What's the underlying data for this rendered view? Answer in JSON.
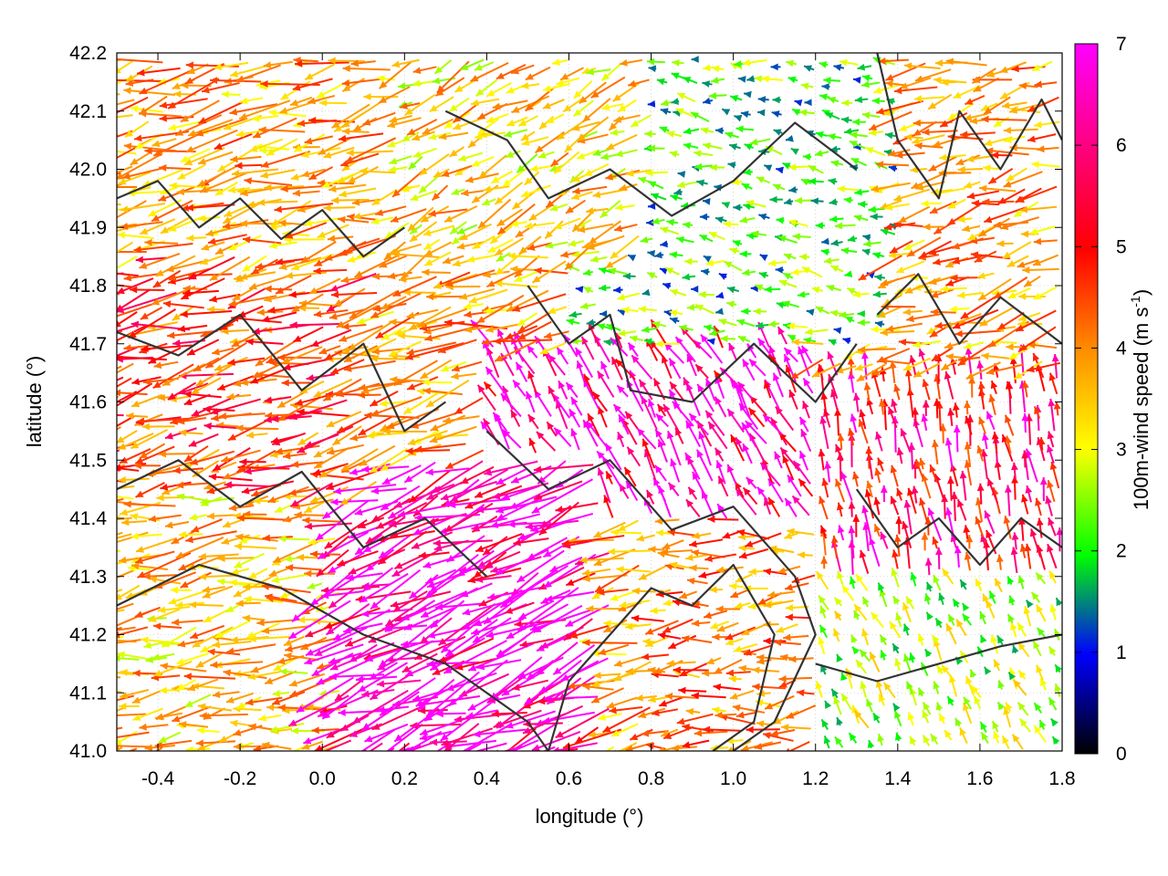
{
  "chart_data": {
    "type": "vector-field",
    "xlabel": "longitude (°)",
    "ylabel": "latitude (°)",
    "xlim": [
      -0.5,
      1.8
    ],
    "ylim": [
      41.0,
      42.2
    ],
    "xticks": [
      -0.4,
      -0.2,
      0.0,
      0.2,
      0.4,
      0.6,
      0.8,
      1.0,
      1.2,
      1.4,
      1.6,
      1.8
    ],
    "xtick_labels": [
      "-0.4",
      "-0.2",
      "0.0",
      "0.2",
      "0.4",
      "0.6",
      "0.8",
      "1.0",
      "1.2",
      "1.4",
      "1.6",
      "1.8"
    ],
    "yticks": [
      41.0,
      41.1,
      41.2,
      41.3,
      41.4,
      41.5,
      41.6,
      41.7,
      41.8,
      41.9,
      42.0,
      42.1,
      42.2
    ],
    "ytick_labels": [
      "41.0",
      "41.1",
      "41.2",
      "41.3",
      "41.4",
      "41.5",
      "41.6",
      "41.7",
      "41.8",
      "41.9",
      "42.0",
      "42.1",
      "42.2"
    ],
    "grid": true,
    "colorbar": {
      "label": "100m-wind speed (m s",
      "label_sup": "-1",
      "label_end": ")",
      "range": [
        0,
        7
      ],
      "ticks": [
        "0",
        "1",
        "2",
        "3",
        "4",
        "5",
        "6",
        "7"
      ],
      "colors": [
        "#000000",
        "#0000ff",
        "#00ff00",
        "#ffff00",
        "#ff8c00",
        "#ff0000",
        "#ff00ff"
      ]
    },
    "series": [
      {
        "kind": "wind-vectors",
        "regions": [
          {
            "x": [
              -0.5,
              0.2
            ],
            "y": [
              41.85,
              42.2
            ],
            "speed": 4.5,
            "dir_deg": 190,
            "len": 0.09
          },
          {
            "x": [
              -0.5,
              0.15
            ],
            "y": [
              41.45,
              41.85
            ],
            "speed": 5.2,
            "dir_deg": 190,
            "len": 0.09
          },
          {
            "x": [
              -0.5,
              0.05
            ],
            "y": [
              41.0,
              41.45
            ],
            "speed": 4.2,
            "dir_deg": 188,
            "len": 0.08
          },
          {
            "x": [
              0.05,
              0.7
            ],
            "y": [
              41.0,
              41.5
            ],
            "speed": 7.0,
            "dir_deg": 196,
            "len": 0.12
          },
          {
            "x": [
              0.4,
              1.2
            ],
            "y": [
              41.4,
              41.7
            ],
            "speed": 6.8,
            "dir_deg": 130,
            "len": 0.05
          },
          {
            "x": [
              0.2,
              0.8
            ],
            "y": [
              41.85,
              42.2
            ],
            "speed": 4.0,
            "dir_deg": 200,
            "len": 0.06
          },
          {
            "x": [
              0.6,
              1.4
            ],
            "y": [
              41.7,
              42.2
            ],
            "speed": 2.4,
            "dir_deg": 175,
            "len": 0.03
          },
          {
            "x": [
              1.2,
              1.8
            ],
            "y": [
              41.65,
              42.2
            ],
            "speed": 4.5,
            "dir_deg": 190,
            "len": 0.07
          },
          {
            "x": [
              1.2,
              1.8
            ],
            "y": [
              41.3,
              41.65
            ],
            "speed": 6.0,
            "dir_deg": 105,
            "len": 0.04
          },
          {
            "x": [
              0.8,
              1.2
            ],
            "y": [
              41.0,
              41.4
            ],
            "speed": 4.8,
            "dir_deg": 185,
            "len": 0.06
          },
          {
            "x": [
              1.2,
              1.8
            ],
            "y": [
              41.0,
              41.3
            ],
            "speed": 3.0,
            "dir_deg": 125,
            "len": 0.025
          }
        ]
      },
      {
        "kind": "terrain-contours",
        "contours": [
          [
            [
              -0.5,
              41.95
            ],
            [
              -0.4,
              41.98
            ],
            [
              -0.3,
              41.9
            ],
            [
              -0.2,
              41.95
            ],
            [
              -0.1,
              41.88
            ],
            [
              0.0,
              41.93
            ],
            [
              0.1,
              41.85
            ],
            [
              0.2,
              41.9
            ]
          ],
          [
            [
              -0.5,
              41.72
            ],
            [
              -0.35,
              41.68
            ],
            [
              -0.2,
              41.75
            ],
            [
              -0.05,
              41.62
            ],
            [
              0.1,
              41.7
            ],
            [
              0.2,
              41.55
            ],
            [
              0.3,
              41.6
            ]
          ],
          [
            [
              -0.5,
              41.45
            ],
            [
              -0.35,
              41.5
            ],
            [
              -0.2,
              41.42
            ],
            [
              -0.05,
              41.48
            ],
            [
              0.1,
              41.35
            ],
            [
              0.25,
              41.4
            ],
            [
              0.4,
              41.3
            ]
          ],
          [
            [
              -0.5,
              41.25
            ],
            [
              -0.3,
              41.32
            ],
            [
              -0.1,
              41.28
            ],
            [
              0.1,
              41.2
            ],
            [
              0.3,
              41.15
            ],
            [
              0.5,
              41.05
            ],
            [
              0.55,
              41.0
            ]
          ],
          [
            [
              0.4,
              41.55
            ],
            [
              0.55,
              41.45
            ],
            [
              0.7,
              41.5
            ],
            [
              0.85,
              41.38
            ],
            [
              1.0,
              41.42
            ],
            [
              1.15,
              41.3
            ],
            [
              1.2,
              41.2
            ],
            [
              1.1,
              41.05
            ],
            [
              1.0,
              41.0
            ]
          ],
          [
            [
              0.55,
              41.0
            ],
            [
              0.6,
              41.12
            ],
            [
              0.7,
              41.2
            ],
            [
              0.8,
              41.28
            ],
            [
              0.9,
              41.25
            ],
            [
              1.0,
              41.32
            ],
            [
              1.1,
              41.2
            ],
            [
              1.05,
              41.05
            ],
            [
              0.95,
              41.0
            ]
          ],
          [
            [
              0.3,
              42.1
            ],
            [
              0.45,
              42.05
            ],
            [
              0.55,
              41.95
            ],
            [
              0.7,
              42.0
            ],
            [
              0.85,
              41.92
            ],
            [
              1.0,
              41.98
            ],
            [
              1.15,
              42.08
            ],
            [
              1.3,
              42.0
            ]
          ],
          [
            [
              0.5,
              41.8
            ],
            [
              0.6,
              41.7
            ],
            [
              0.7,
              41.75
            ],
            [
              0.75,
              41.62
            ],
            [
              0.9,
              41.6
            ],
            [
              1.05,
              41.7
            ],
            [
              1.2,
              41.6
            ],
            [
              1.3,
              41.7
            ]
          ],
          [
            [
              1.2,
              41.15
            ],
            [
              1.35,
              41.12
            ],
            [
              1.5,
              41.15
            ],
            [
              1.65,
              41.18
            ],
            [
              1.8,
              41.2
            ]
          ],
          [
            [
              1.3,
              41.45
            ],
            [
              1.4,
              41.35
            ],
            [
              1.5,
              41.4
            ],
            [
              1.6,
              41.32
            ],
            [
              1.7,
              41.4
            ],
            [
              1.8,
              41.35
            ]
          ],
          [
            [
              1.35,
              42.2
            ],
            [
              1.4,
              42.05
            ],
            [
              1.5,
              41.95
            ],
            [
              1.55,
              42.1
            ],
            [
              1.65,
              42.0
            ],
            [
              1.75,
              42.12
            ],
            [
              1.8,
              42.05
            ]
          ],
          [
            [
              1.35,
              41.75
            ],
            [
              1.45,
              41.82
            ],
            [
              1.55,
              41.7
            ],
            [
              1.65,
              41.78
            ],
            [
              1.8,
              41.7
            ]
          ]
        ]
      }
    ]
  }
}
